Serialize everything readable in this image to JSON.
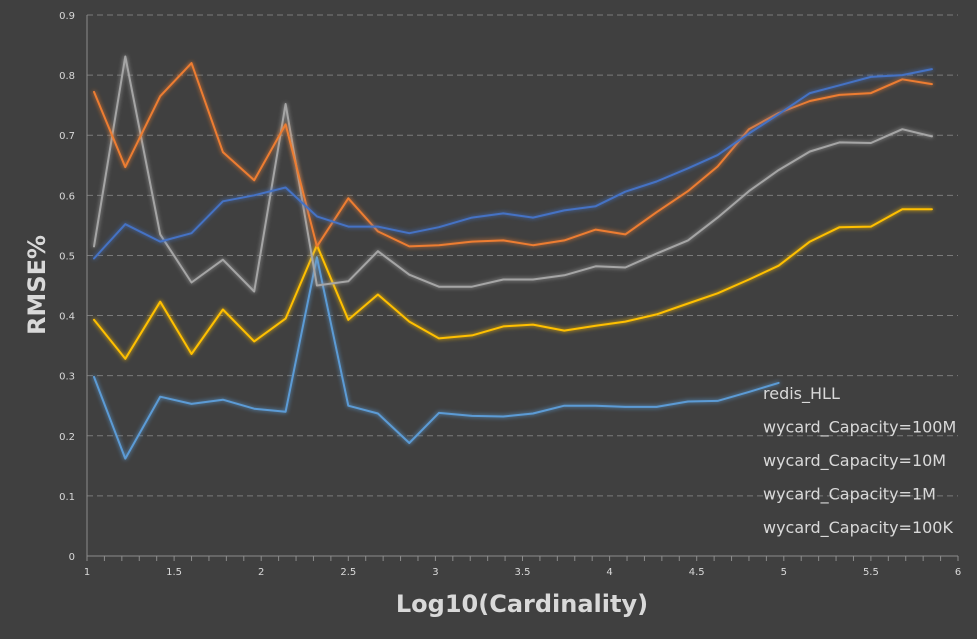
{
  "chart_data": {
    "type": "line",
    "title": "",
    "xlabel": "Log10(Cardinality)",
    "ylabel": "RMSE%",
    "xlim": [
      1,
      6
    ],
    "ylim": [
      0,
      0.9
    ],
    "x_ticks": [
      "1",
      "1.5",
      "2",
      "2.5",
      "3",
      "3.5",
      "4",
      "4.5",
      "5",
      "5.5",
      "6"
    ],
    "y_ticks": [
      "0",
      "0.1",
      "0.2",
      "0.3",
      "0.4",
      "0.5",
      "0.6",
      "0.7",
      "0.8",
      "0.9"
    ],
    "grid": "horizontal",
    "legend_position": "bottom-right",
    "background": "#404040",
    "x": [
      1.04,
      1.22,
      1.42,
      1.6,
      1.78,
      1.96,
      2.14,
      2.32,
      2.5,
      2.67,
      2.85,
      3.02,
      3.21,
      3.39,
      3.56,
      3.74,
      3.92,
      4.09,
      4.27,
      4.45,
      4.62,
      4.8,
      4.97,
      5.15,
      5.32,
      5.5,
      5.68,
      5.85
    ],
    "series": [
      {
        "name": "redis_HLL",
        "color": "#4472c4",
        "values": [
          0.495,
          0.552,
          0.523,
          0.537,
          0.59,
          0.6,
          0.613,
          0.565,
          0.548,
          0.548,
          0.537,
          0.547,
          0.563,
          0.57,
          0.563,
          0.575,
          0.582,
          0.606,
          0.623,
          0.645,
          0.667,
          0.703,
          0.735,
          0.77,
          0.783,
          0.797,
          0.8,
          0.81
        ]
      },
      {
        "name": "wycard_Capacity=100M",
        "color": "#ed7d31",
        "values": [
          0.772,
          0.647,
          0.765,
          0.82,
          0.672,
          0.625,
          0.718,
          0.515,
          0.595,
          0.54,
          0.515,
          0.517,
          0.523,
          0.525,
          0.517,
          0.525,
          0.543,
          0.535,
          0.572,
          0.607,
          0.648,
          0.71,
          0.737,
          0.757,
          0.767,
          0.77,
          0.793,
          0.785
        ]
      },
      {
        "name": "wycard_Capacity=10M",
        "color": "#a5a5a5",
        "values": [
          0.515,
          0.831,
          0.535,
          0.455,
          0.493,
          0.44,
          0.752,
          0.45,
          0.457,
          0.507,
          0.468,
          0.448,
          0.448,
          0.46,
          0.46,
          0.467,
          0.482,
          0.48,
          0.503,
          0.525,
          0.563,
          0.607,
          0.642,
          0.673,
          0.688,
          0.687,
          0.71,
          0.698
        ]
      },
      {
        "name": "wycard_Capacity=1M",
        "color": "#ffc000",
        "values": [
          0.393,
          0.328,
          0.423,
          0.336,
          0.41,
          0.357,
          0.395,
          0.517,
          0.393,
          0.435,
          0.39,
          0.362,
          0.367,
          0.382,
          0.385,
          0.375,
          0.383,
          0.39,
          0.402,
          0.42,
          0.437,
          0.46,
          0.483,
          0.523,
          0.547,
          0.548,
          0.577,
          0.577
        ]
      },
      {
        "name": "wycard_Capacity=100K",
        "color": "#5b9bd5",
        "values": [
          0.298,
          0.162,
          0.265,
          0.253,
          0.26,
          0.245,
          0.24,
          0.497,
          0.25,
          0.237,
          0.188,
          0.238,
          0.233,
          0.232,
          0.237,
          0.25,
          0.25,
          0.248,
          0.248,
          0.257,
          0.258,
          0.273,
          0.288,
          null,
          null,
          null,
          null,
          null
        ]
      }
    ]
  }
}
